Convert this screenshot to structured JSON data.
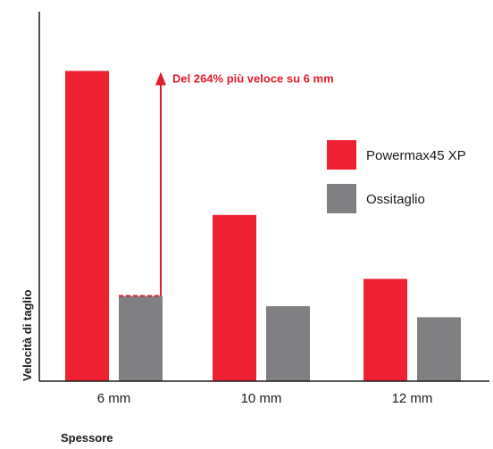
{
  "chart_data": {
    "type": "bar",
    "title": "",
    "xlabel": "Spessore",
    "ylabel": "Velocità di taglio",
    "categories": [
      "6 mm",
      "10 mm",
      "12 mm"
    ],
    "series": [
      {
        "name": "Powermax45 XP",
        "values": [
          3.64,
          1.95,
          1.2
        ]
      },
      {
        "name": "Ossitaglio",
        "values": [
          1.0,
          0.88,
          0.75
        ]
      }
    ],
    "ylim": [
      0,
      4.2
    ],
    "grid": false,
    "legend_position": "right",
    "annotation": {
      "text": "Del 264% più veloce su 6 mm",
      "category": "6 mm",
      "from_value": 1.0,
      "to_value": 3.64
    },
    "colors": {
      "Powermax45 XP": "#ee2233",
      "Ossitaglio": "#808083",
      "annotation": "#e31b2f",
      "axis": "#1a1a1a"
    }
  }
}
